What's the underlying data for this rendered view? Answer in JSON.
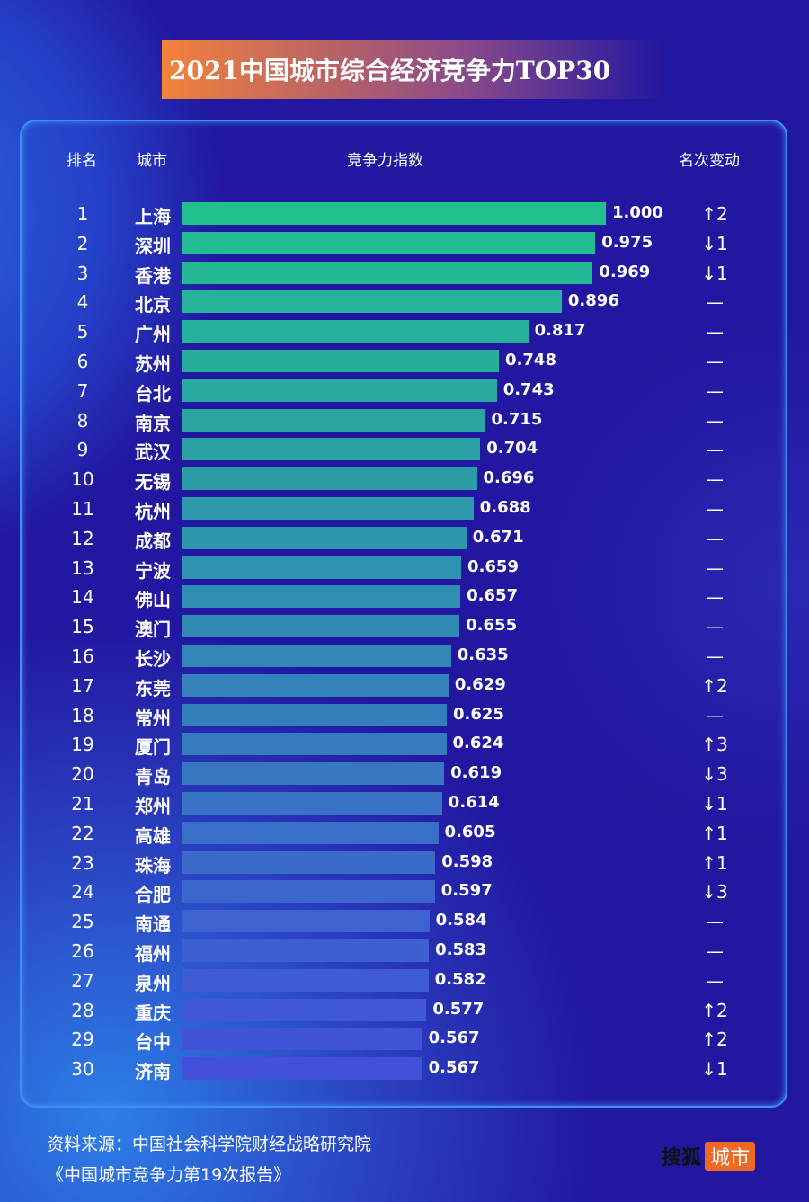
{
  "title": "2021中国城市综合经济竞争力TOP30",
  "chart_data": {
    "type": "bar",
    "orientation": "horizontal",
    "title": "2021中国城市综合经济竞争力TOP30",
    "columns": [
      "排名",
      "城市",
      "竞争力指数",
      "名次变动"
    ],
    "xlim": [
      0,
      1
    ],
    "categories": [
      "上海",
      "深圳",
      "香港",
      "北京",
      "广州",
      "苏州",
      "台北",
      "南京",
      "武汉",
      "无锡",
      "杭州",
      "成都",
      "宁波",
      "佛山",
      "澳门",
      "长沙",
      "东莞",
      "常州",
      "厦门",
      "青岛",
      "郑州",
      "高雄",
      "珠海",
      "合肥",
      "南通",
      "福州",
      "泉州",
      "重庆",
      "台中",
      "济南"
    ],
    "ranks": [
      1,
      2,
      3,
      4,
      5,
      6,
      7,
      8,
      9,
      10,
      11,
      12,
      13,
      14,
      15,
      16,
      17,
      18,
      19,
      20,
      21,
      22,
      23,
      24,
      25,
      26,
      27,
      28,
      29,
      30
    ],
    "values": [
      1.0,
      0.975,
      0.969,
      0.896,
      0.817,
      0.748,
      0.743,
      0.715,
      0.704,
      0.696,
      0.688,
      0.671,
      0.659,
      0.657,
      0.655,
      0.635,
      0.629,
      0.625,
      0.624,
      0.619,
      0.614,
      0.605,
      0.598,
      0.597,
      0.584,
      0.583,
      0.582,
      0.577,
      0.567,
      0.567
    ],
    "labels": [
      "1.000",
      "0.975",
      "0.969",
      "0.896",
      "0.817",
      "0.748",
      "0.743",
      "0.715",
      "0.704",
      "0.696",
      "0.688",
      "0.671",
      "0.659",
      "0.657",
      "0.655",
      "0.635",
      "0.629",
      "0.625",
      "0.624",
      "0.619",
      "0.614",
      "0.605",
      "0.598",
      "0.597",
      "0.584",
      "0.583",
      "0.582",
      "0.577",
      "0.567",
      "0.567"
    ],
    "rank_change": [
      "↑2",
      "↓1",
      "↓1",
      "—",
      "—",
      "—",
      "—",
      "—",
      "—",
      "—",
      "—",
      "—",
      "—",
      "—",
      "—",
      "—",
      "↑2",
      "—",
      "↑3",
      "↓3",
      "↓1",
      "↑1",
      "↑1",
      "↓3",
      "—",
      "—",
      "—",
      "↑2",
      "↑2",
      "↓1"
    ],
    "bar_colors": {
      "top": "#22c08f",
      "bottom": "#4250dc"
    }
  },
  "source": {
    "line1": "资料来源：中国社会科学院财经战略研究院",
    "line2": "《中国城市竞争力第19次报告》"
  },
  "logo": {
    "part1": "搜狐",
    "part2": "城市"
  }
}
